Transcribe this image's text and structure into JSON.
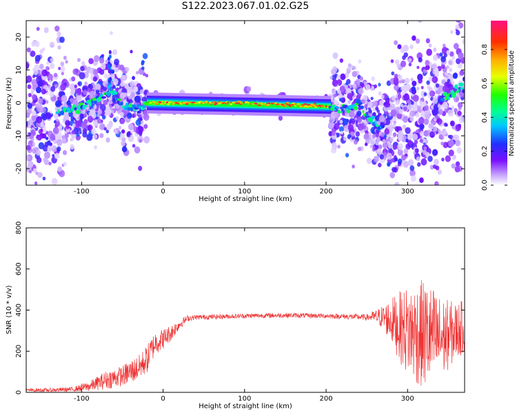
{
  "title": "S122.2023.067.01.02.G25",
  "chart_data": [
    {
      "type": "heatmap",
      "xlabel": "Height of straight line (km)",
      "ylabel": "Frequency (Hz)",
      "xlim": [
        -168,
        370
      ],
      "ylim": [
        -25,
        25
      ],
      "x_ticks": [
        -100,
        0,
        100,
        200,
        300
      ],
      "y_ticks": [
        -20,
        -10,
        0,
        10,
        20
      ],
      "colorbar": {
        "label": "Normalized spectral amplitude",
        "range": [
          0.0,
          0.97
        ],
        "ticks": [
          "0.0",
          "0.2",
          "0.4",
          "0.6",
          "0.8"
        ],
        "colormap": "rainbow"
      },
      "ridge": {
        "x": [
          -168,
          -130,
          -110,
          -80,
          -65,
          -60,
          -52,
          -45,
          -38,
          -30,
          -24,
          -20,
          0,
          50,
          100,
          150,
          200,
          205,
          215,
          225,
          232,
          240,
          248,
          258,
          270,
          290,
          320,
          350,
          370
        ],
        "freq": [
          -2,
          -3,
          -2,
          1,
          4,
          3,
          0,
          -1,
          -1,
          -2,
          -1,
          0,
          0,
          0,
          0,
          -0.5,
          -1,
          -1,
          -2,
          -1,
          -2,
          0,
          -4,
          -6,
          -8,
          -4,
          -2,
          2,
          5
        ]
      }
    },
    {
      "type": "line",
      "xlabel": "Height of straight line (km)",
      "ylabel": "SNR (10 * v/v)",
      "xlim": [
        -168,
        370
      ],
      "ylim": [
        0,
        800
      ],
      "x_ticks": [
        -100,
        0,
        100,
        200,
        300
      ],
      "y_ticks": [
        0,
        200,
        400,
        600,
        800
      ],
      "color": "#ee3333",
      "series": [
        {
          "x": [
            -168,
            -130,
            -110,
            -90,
            -70,
            -50,
            -40,
            -30,
            -20,
            -10,
            0,
            10,
            20,
            30,
            40,
            60,
            100,
            150,
            200,
            250,
            260,
            270,
            280,
            290,
            300,
            310,
            320,
            330,
            340,
            350,
            360,
            370
          ],
          "mean": [
            10,
            12,
            15,
            30,
            60,
            80,
            100,
            120,
            160,
            240,
            260,
            290,
            330,
            360,
            365,
            367,
            372,
            375,
            372,
            365,
            368,
            365,
            350,
            320,
            300,
            290,
            280,
            270,
            260,
            280,
            300,
            320
          ],
          "spread": [
            8,
            10,
            12,
            25,
            45,
            50,
            60,
            60,
            70,
            60,
            50,
            40,
            25,
            15,
            12,
            12,
            12,
            12,
            12,
            15,
            30,
            60,
            110,
            170,
            220,
            250,
            270,
            250,
            210,
            170,
            140,
            130
          ]
        }
      ]
    }
  ]
}
